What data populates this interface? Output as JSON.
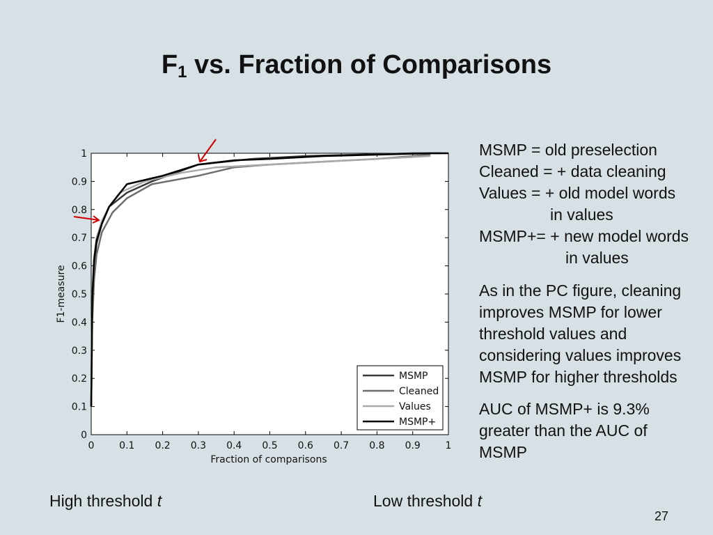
{
  "slide": {
    "title_main": "F",
    "title_sub": "1",
    "title_rest": " vs. Fraction of Comparisons",
    "page_number": "27"
  },
  "legend_notes": {
    "line1": "MSMP = old preselection",
    "line2": "Cleaned = + data cleaning",
    "line3": "Values = + old model words",
    "line4": "in values",
    "line5": "MSMP+= + new model words",
    "line6": "in values"
  },
  "notes": {
    "para2_line1": "As in the PC figure, cleaning",
    "para2_line2": "improves MSMP for lower",
    "para2_line3": "threshold values and",
    "para2_line4": "considering values improves",
    "para2_line5": "MSMP for higher thresholds",
    "para3_line1": "AUC of MSMP+ is 9.3%",
    "para3_line2": "greater than the AUC of",
    "para3_line3": "MSMP"
  },
  "bottom": {
    "high_text": "High threshold ",
    "high_var": "t",
    "low_text": "Low threshold ",
    "low_var": "t"
  },
  "annotation_color": "#cc0000",
  "chart_data": {
    "type": "line",
    "xlabel": "Fraction of comparisons",
    "ylabel": "F1-measure",
    "xlim": [
      0,
      1
    ],
    "ylim": [
      0,
      1
    ],
    "xticks": [
      "0",
      "0.1",
      "0.2",
      "0.3",
      "0.4",
      "0.5",
      "0.6",
      "0.7",
      "0.8",
      "0.9",
      "1"
    ],
    "yticks": [
      "0",
      "0.1",
      "0.2",
      "0.3",
      "0.4",
      "0.5",
      "0.6",
      "0.7",
      "0.8",
      "0.9",
      "1"
    ],
    "legend_position": "bottom-right",
    "series": [
      {
        "name": "MSMP",
        "color": "#3a3a3a",
        "x": [
          0,
          0.003,
          0.008,
          0.015,
          0.03,
          0.05,
          0.1,
          0.17,
          0.3,
          0.45,
          0.6,
          0.75,
          0.9,
          0.98
        ],
        "y": [
          0.1,
          0.45,
          0.6,
          0.68,
          0.75,
          0.81,
          0.86,
          0.9,
          0.96,
          0.98,
          0.99,
          0.995,
          1.0,
          1.0
        ]
      },
      {
        "name": "Cleaned",
        "color": "#6e6e6e",
        "x": [
          0,
          0.003,
          0.008,
          0.015,
          0.03,
          0.06,
          0.1,
          0.17,
          0.3,
          0.4,
          0.5,
          0.65,
          0.8,
          0.95
        ],
        "y": [
          0.1,
          0.4,
          0.55,
          0.64,
          0.72,
          0.79,
          0.84,
          0.89,
          0.92,
          0.95,
          0.96,
          0.97,
          0.98,
          0.995
        ]
      },
      {
        "name": "Values",
        "color": "#a8a8a8",
        "x": [
          0,
          0.003,
          0.008,
          0.015,
          0.03,
          0.05,
          0.08,
          0.15,
          0.25,
          0.35,
          0.5,
          0.65,
          0.8,
          0.95
        ],
        "y": [
          0.1,
          0.5,
          0.63,
          0.7,
          0.76,
          0.81,
          0.86,
          0.9,
          0.93,
          0.95,
          0.96,
          0.97,
          0.98,
          0.99
        ]
      },
      {
        "name": "MSMP+",
        "color": "#000000",
        "x": [
          0,
          0.003,
          0.008,
          0.015,
          0.03,
          0.05,
          0.1,
          0.2,
          0.3,
          0.4,
          0.5,
          0.65,
          0.8,
          0.95,
          1.0
        ],
        "y": [
          0.1,
          0.48,
          0.62,
          0.69,
          0.75,
          0.81,
          0.89,
          0.92,
          0.96,
          0.975,
          0.98,
          0.99,
          0.995,
          1.0,
          1.0
        ]
      }
    ]
  }
}
